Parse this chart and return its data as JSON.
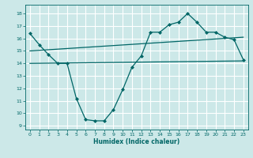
{
  "bg_color": "#cce8e8",
  "grid_color": "#ffffff",
  "line_color": "#006666",
  "marker_color": "#006666",
  "xlabel": "Humidex (Indice chaleur)",
  "xlim": [
    -0.5,
    23.5
  ],
  "ylim": [
    8.7,
    18.7
  ],
  "yticks": [
    9,
    10,
    11,
    12,
    13,
    14,
    15,
    16,
    17,
    18
  ],
  "xticks": [
    0,
    1,
    2,
    3,
    4,
    5,
    6,
    7,
    8,
    9,
    10,
    11,
    12,
    13,
    14,
    15,
    16,
    17,
    18,
    19,
    20,
    21,
    22,
    23
  ],
  "line1_x": [
    0,
    1,
    2,
    3,
    4,
    5,
    6,
    7,
    8,
    9,
    10,
    11,
    12,
    13,
    14,
    15,
    16,
    17,
    18,
    19,
    20,
    21,
    22,
    23
  ],
  "line1_y": [
    16.4,
    15.5,
    14.7,
    14.0,
    14.0,
    11.2,
    9.5,
    9.4,
    9.4,
    10.3,
    11.9,
    13.7,
    14.6,
    16.5,
    16.5,
    17.1,
    17.3,
    18.0,
    17.3,
    16.5,
    16.5,
    16.1,
    15.9,
    14.3
  ],
  "line2_x": [
    0,
    23
  ],
  "line2_y": [
    14.0,
    14.2
  ],
  "line3_x": [
    0,
    23
  ],
  "line3_y": [
    15.0,
    16.1
  ]
}
